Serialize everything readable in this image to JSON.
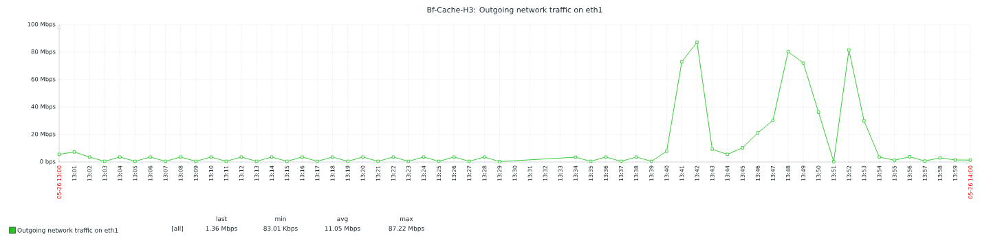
{
  "chart_data": {
    "type": "line",
    "title": "Bf-Cache-H3: Outgoing network traffic on eth1",
    "x": [
      13,
      13.0167,
      13.0333,
      13.05,
      13.0667,
      13.0833,
      13.1,
      13.1167,
      13.1333,
      13.15,
      13.1667,
      13.1833,
      13.2,
      13.2167,
      13.2333,
      13.25,
      13.2667,
      13.2833,
      13.3,
      13.3167,
      13.3333,
      13.35,
      13.3667,
      13.3833,
      13.4,
      13.4167,
      13.4333,
      13.45,
      13.4667,
      13.4833,
      13.5667,
      13.5833,
      13.6,
      13.6167,
      13.6333,
      13.65,
      13.6667,
      13.6833,
      13.7,
      13.7167,
      13.7333,
      13.75,
      13.7667,
      13.7833,
      13.8,
      13.8167,
      13.8333,
      13.85,
      13.8667,
      13.8833,
      13.9,
      13.9167,
      13.9333,
      13.95,
      13.9667,
      13.9833,
      14
    ],
    "series": [
      {
        "name": "Outgoing network traffic on eth1",
        "color": "#1ec81e",
        "values": [
          5.6,
          7.3,
          3.6,
          0.5,
          3.6,
          0.5,
          3.6,
          0.5,
          3.6,
          0.5,
          3.6,
          0.5,
          3.6,
          0.5,
          3.6,
          0.5,
          3.6,
          0.5,
          3.6,
          0.5,
          3.6,
          0.5,
          3.6,
          0.5,
          3.6,
          0.5,
          3.6,
          0.5,
          3.6,
          0.3,
          3.5,
          0.5,
          3.6,
          0.5,
          3.6,
          0.5,
          7.8,
          73.0,
          87.2,
          9.3,
          5.6,
          10.3,
          21.2,
          30.2,
          80.4,
          72.1,
          36.3,
          0.3,
          81.6,
          29.9,
          3.6,
          1.3,
          3.8,
          0.7,
          3.0,
          1.5,
          1.4
        ]
      }
    ],
    "xlim": [
      13,
      14
    ],
    "xticks": [
      {
        "value": 13,
        "label": "05-26 13:00"
      },
      {
        "value": 13.0167,
        "label": "13:01"
      },
      {
        "value": 13.0333,
        "label": "13:02"
      },
      {
        "value": 13.05,
        "label": "13:03"
      },
      {
        "value": 13.0667,
        "label": "13:04"
      },
      {
        "value": 13.0833,
        "label": "13:05"
      },
      {
        "value": 13.1,
        "label": "13:06"
      },
      {
        "value": 13.1167,
        "label": "13:07"
      },
      {
        "value": 13.1333,
        "label": "13:08"
      },
      {
        "value": 13.15,
        "label": "13:09"
      },
      {
        "value": 13.1667,
        "label": "13:10"
      },
      {
        "value": 13.1833,
        "label": "13:11"
      },
      {
        "value": 13.2,
        "label": "13:12"
      },
      {
        "value": 13.2167,
        "label": "13:13"
      },
      {
        "value": 13.2333,
        "label": "13:14"
      },
      {
        "value": 13.25,
        "label": "13:15"
      },
      {
        "value": 13.2667,
        "label": "13:16"
      },
      {
        "value": 13.2833,
        "label": "13:17"
      },
      {
        "value": 13.3,
        "label": "13:18"
      },
      {
        "value": 13.3167,
        "label": "13:19"
      },
      {
        "value": 13.3333,
        "label": "13:20"
      },
      {
        "value": 13.35,
        "label": "13:21"
      },
      {
        "value": 13.3667,
        "label": "13:22"
      },
      {
        "value": 13.3833,
        "label": "13:23"
      },
      {
        "value": 13.4,
        "label": "13:24"
      },
      {
        "value": 13.4167,
        "label": "13:25"
      },
      {
        "value": 13.4333,
        "label": "13:26"
      },
      {
        "value": 13.45,
        "label": "13:27"
      },
      {
        "value": 13.4667,
        "label": "13:28"
      },
      {
        "value": 13.4833,
        "label": "13:29"
      },
      {
        "value": 13.5,
        "label": "13:30"
      },
      {
        "value": 13.5167,
        "label": "13:31"
      },
      {
        "value": 13.5333,
        "label": "13:32"
      },
      {
        "value": 13.55,
        "label": "13:33"
      },
      {
        "value": 13.5667,
        "label": "13:34"
      },
      {
        "value": 13.5833,
        "label": "13:35"
      },
      {
        "value": 13.6,
        "label": "13:36"
      },
      {
        "value": 13.6167,
        "label": "13:37"
      },
      {
        "value": 13.6333,
        "label": "13:38"
      },
      {
        "value": 13.65,
        "label": "13:39"
      },
      {
        "value": 13.6667,
        "label": "13:40"
      },
      {
        "value": 13.6833,
        "label": "13:41"
      },
      {
        "value": 13.7,
        "label": "13:42"
      },
      {
        "value": 13.7167,
        "label": "13:43"
      },
      {
        "value": 13.7333,
        "label": "13:44"
      },
      {
        "value": 13.75,
        "label": "13:45"
      },
      {
        "value": 13.7667,
        "label": "13:46"
      },
      {
        "value": 13.7833,
        "label": "13:47"
      },
      {
        "value": 13.8,
        "label": "13:48"
      },
      {
        "value": 13.8167,
        "label": "13:49"
      },
      {
        "value": 13.8333,
        "label": "13:50"
      },
      {
        "value": 13.85,
        "label": "13:51"
      },
      {
        "value": 13.8667,
        "label": "13:52"
      },
      {
        "value": 13.8833,
        "label": "13:53"
      },
      {
        "value": 13.9,
        "label": "13:54"
      },
      {
        "value": 13.9167,
        "label": "13:55"
      },
      {
        "value": 13.9333,
        "label": "13:56"
      },
      {
        "value": 13.95,
        "label": "13:57"
      },
      {
        "value": 13.9667,
        "label": "13:58"
      },
      {
        "value": 13.9833,
        "label": "13:59"
      },
      {
        "value": 14,
        "label": "05-26 14:00"
      }
    ],
    "ylim": [
      0,
      100
    ],
    "yticks": [
      {
        "value": 0,
        "label": "0 bps"
      },
      {
        "value": 20,
        "label": "20 Mbps"
      },
      {
        "value": 40,
        "label": "40 Mbps"
      },
      {
        "value": 60,
        "label": "60 Mbps"
      },
      {
        "value": 80,
        "label": "80 Mbps"
      },
      {
        "value": 100,
        "label": "100 Mbps"
      }
    ],
    "grid": true,
    "legend": "bottom left",
    "marker": "square",
    "line_style": "solid",
    "annotations": [
      "[all]",
      "last",
      "1.36 Mbps",
      "min",
      "83.01 Kbps",
      "avg",
      "11.05 Mbps",
      "max",
      "87.22 Mbps"
    ]
  }
}
